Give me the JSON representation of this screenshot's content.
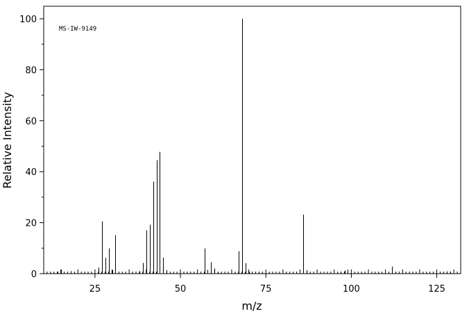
{
  "chart_data": {
    "type": "bar",
    "title": "",
    "annotation": "MS-IW-9149",
    "xlabel": "m/z",
    "ylabel": "Relative Intensity",
    "xlim": [
      10,
      132
    ],
    "ylim": [
      0,
      100
    ],
    "x_ticks": [
      25,
      50,
      75,
      100,
      125
    ],
    "y_ticks": [
      0,
      20,
      40,
      60,
      80,
      100
    ],
    "grid": false,
    "peaks": [
      {
        "mz": 14,
        "intensity": 0.8
      },
      {
        "mz": 15,
        "intensity": 1.6
      },
      {
        "mz": 18,
        "intensity": 1.0
      },
      {
        "mz": 26,
        "intensity": 2.4
      },
      {
        "mz": 27,
        "intensity": 20.5
      },
      {
        "mz": 28,
        "intensity": 6.2
      },
      {
        "mz": 29,
        "intensity": 9.9
      },
      {
        "mz": 30,
        "intensity": 1.4
      },
      {
        "mz": 31,
        "intensity": 15.1
      },
      {
        "mz": 32,
        "intensity": 0.8
      },
      {
        "mz": 38,
        "intensity": 1.0
      },
      {
        "mz": 39,
        "intensity": 4.2
      },
      {
        "mz": 40,
        "intensity": 17.0
      },
      {
        "mz": 41,
        "intensity": 19.2
      },
      {
        "mz": 42,
        "intensity": 36.1
      },
      {
        "mz": 43,
        "intensity": 44.5
      },
      {
        "mz": 44,
        "intensity": 47.8
      },
      {
        "mz": 45,
        "intensity": 6.3
      },
      {
        "mz": 46,
        "intensity": 1.4
      },
      {
        "mz": 57,
        "intensity": 9.9
      },
      {
        "mz": 58,
        "intensity": 1.5
      },
      {
        "mz": 59,
        "intensity": 4.5
      },
      {
        "mz": 60,
        "intensity": 2.0
      },
      {
        "mz": 61,
        "intensity": 0.6
      },
      {
        "mz": 67,
        "intensity": 8.8
      },
      {
        "mz": 68,
        "intensity": 100.0
      },
      {
        "mz": 69,
        "intensity": 4.1
      },
      {
        "mz": 70,
        "intensity": 0.8
      },
      {
        "mz": 86,
        "intensity": 23.2
      },
      {
        "mz": 87,
        "intensity": 1.4
      },
      {
        "mz": 98,
        "intensity": 1.2
      },
      {
        "mz": 99,
        "intensity": 1.6
      },
      {
        "mz": 112,
        "intensity": 2.8
      },
      {
        "mz": 126,
        "intensity": 0.6
      },
      {
        "mz": 128,
        "intensity": 0.9
      },
      {
        "mz": 129,
        "intensity": 0.7
      }
    ]
  }
}
